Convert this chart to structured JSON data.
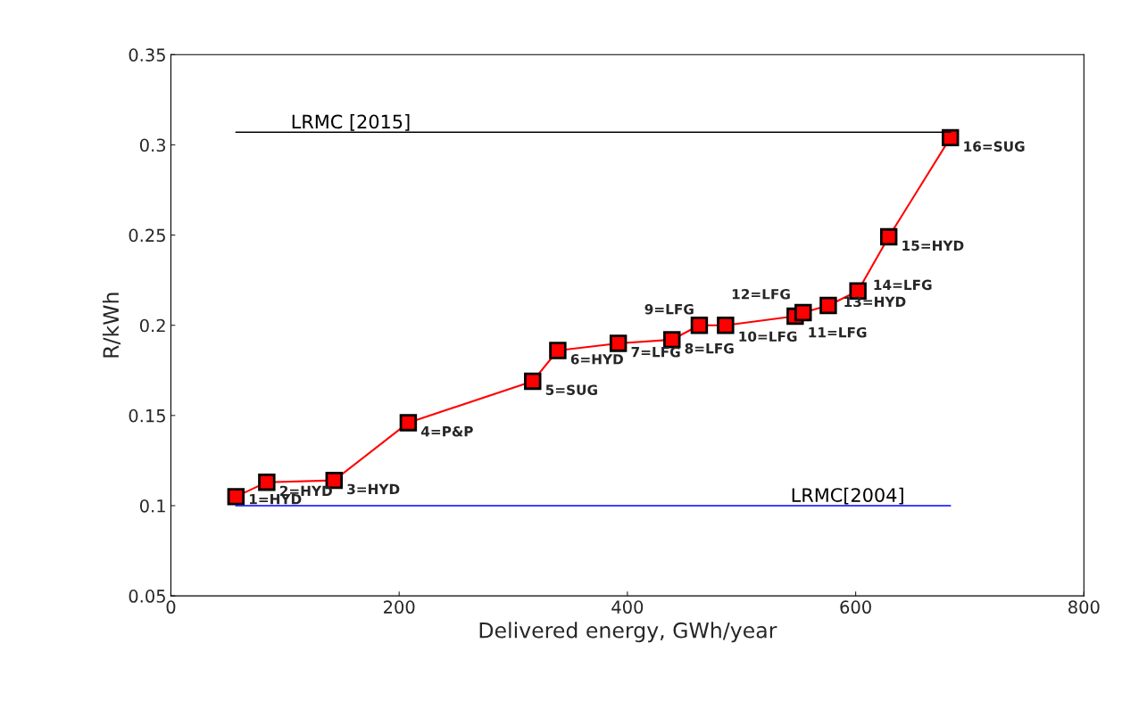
{
  "chart_data": {
    "type": "line",
    "xlabel": "Delivered energy, GWh/year",
    "ylabel": "R/kWh",
    "xlim": [
      0,
      800
    ],
    "xticks": [
      0,
      200,
      400,
      600,
      800
    ],
    "ylim": [
      0.05,
      0.35
    ],
    "yticks": [
      0.05,
      0.1,
      0.15,
      0.2,
      0.25,
      0.3,
      0.35
    ],
    "grid": false,
    "series": [
      {
        "color": "#ff0000",
        "marker": "square",
        "line_style": "solid",
        "x": [
          57,
          84,
          143,
          208,
          317,
          339,
          392,
          439,
          463,
          486,
          547,
          554,
          576,
          602,
          629,
          683
        ],
        "values": [
          0.105,
          0.113,
          0.114,
          0.146,
          0.169,
          0.186,
          0.19,
          0.192,
          0.2,
          0.2,
          0.205,
          0.207,
          0.211,
          0.219,
          0.249,
          0.304
        ]
      },
      {
        "name": "LRMC [2015]",
        "color": "#000000",
        "marker": "none",
        "line_style": "solid",
        "x": [
          57,
          683
        ],
        "values": [
          0.307,
          0.307
        ]
      },
      {
        "name": "LRMC[2004]",
        "color": "#0000ff",
        "marker": "none",
        "line_style": "solid",
        "x": [
          57,
          683
        ],
        "values": [
          0.1,
          0.1
        ]
      }
    ],
    "annotations": [
      {
        "text": "1=HYD",
        "x": 57,
        "y": 0.105
      },
      {
        "text": "2=HYD",
        "x": 84,
        "y": 0.113
      },
      {
        "text": "3=HYD",
        "x": 143,
        "y": 0.114
      },
      {
        "text": "4=P&P",
        "x": 208,
        "y": 0.146
      },
      {
        "text": "5=SUG",
        "x": 317,
        "y": 0.169
      },
      {
        "text": "6=HYD",
        "x": 339,
        "y": 0.186
      },
      {
        "text": "7=LFG",
        "x": 392,
        "y": 0.19
      },
      {
        "text": "8=LFG",
        "x": 439,
        "y": 0.192
      },
      {
        "text": "9=LFG",
        "x": 463,
        "y": 0.2
      },
      {
        "text": "10=LFG",
        "x": 486,
        "y": 0.2
      },
      {
        "text": "11=LFG",
        "x": 547,
        "y": 0.205
      },
      {
        "text": "12=LFG",
        "x": 554,
        "y": 0.207
      },
      {
        "text": "13=HYD",
        "x": 576,
        "y": 0.211
      },
      {
        "text": "14=LFG",
        "x": 602,
        "y": 0.219
      },
      {
        "text": "15=HYD",
        "x": 629,
        "y": 0.249
      },
      {
        "text": "16=SUG",
        "x": 683,
        "y": 0.304
      }
    ]
  }
}
